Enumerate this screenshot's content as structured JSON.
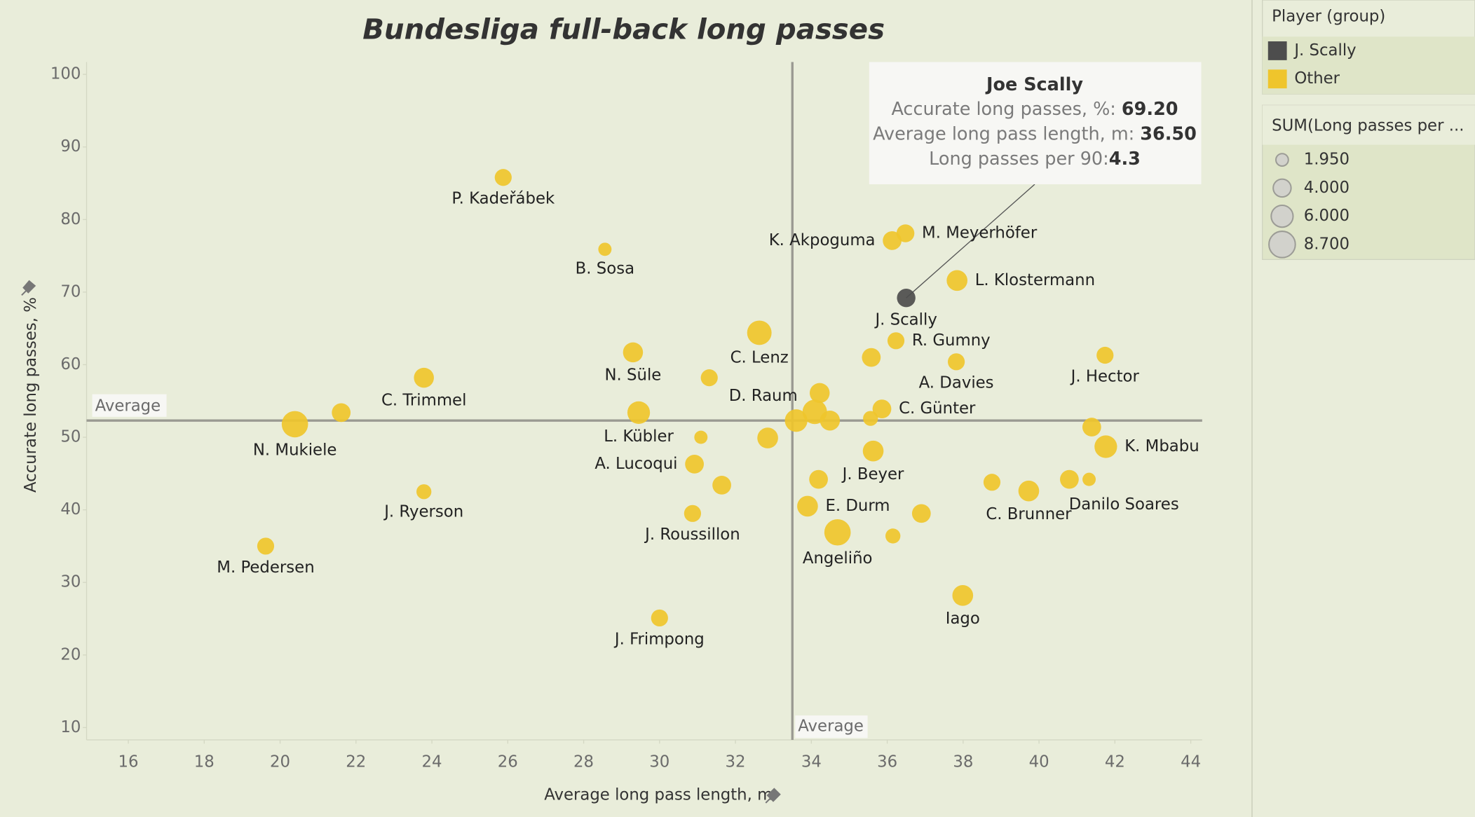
{
  "chart_data": {
    "type": "scatter",
    "title": "Bundesliga full-back long passes",
    "x_label": "Average long pass length, m",
    "y_label": "Accurate long passes, %",
    "xlim": [
      14.9,
      44.3
    ],
    "ylim": [
      8.3,
      101.7
    ],
    "xticks": [
      16,
      18,
      20,
      22,
      24,
      26,
      28,
      30,
      32,
      34,
      36,
      38,
      40,
      42,
      44
    ],
    "yticks": [
      10,
      20,
      30,
      40,
      50,
      60,
      70,
      80,
      90,
      100
    ],
    "reference_lines": [
      {
        "axis": "x",
        "value": 33.5,
        "label": "Average"
      },
      {
        "axis": "y",
        "value": 52.3,
        "label": "Average"
      }
    ],
    "legend": {
      "title": "Player (group)"
    },
    "series": [
      {
        "name": "Other",
        "color": "#efc52c",
        "x": [
          25.88,
          28.56,
          36.13,
          36.48,
          37.84,
          36.23,
          32.63,
          29.3,
          31.31,
          23.79,
          35.58,
          37.82,
          41.74,
          34.22,
          33.6,
          34.09,
          34.49,
          35.86,
          35.56,
          21.61,
          20.39,
          29.45,
          31.09,
          32.85,
          35.63,
          41.39,
          41.76,
          30.92,
          31.64,
          23.79,
          34.19,
          33.9,
          30.87,
          34.69,
          36.15,
          36.9,
          38.76,
          39.73,
          40.8,
          41.32,
          19.62,
          30.0,
          37.99
        ],
        "y": [
          85.8,
          75.9,
          77.1,
          78.1,
          71.6,
          63.3,
          64.4,
          61.7,
          58.2,
          58.2,
          61.0,
          60.4,
          61.3,
          56.1,
          52.3,
          53.5,
          52.3,
          53.9,
          52.6,
          53.4,
          51.8,
          53.4,
          50.0,
          49.9,
          48.1,
          51.4,
          48.7,
          46.3,
          43.4,
          42.5,
          44.2,
          40.5,
          39.5,
          36.9,
          36.4,
          39.5,
          43.8,
          42.6,
          44.2,
          44.2,
          35.0,
          25.1,
          28.2
        ],
        "sizes": [
          3.6,
          2.2,
          4.4,
          4.0,
          5.4,
          3.6,
          7.5,
          5.0,
          3.6,
          5.0,
          4.4,
          3.6,
          3.6,
          5.0,
          6.4,
          7.5,
          5.0,
          4.4,
          2.8,
          4.4,
          8.7,
          6.4,
          2.2,
          5.4,
          5.4,
          4.4,
          6.4,
          4.4,
          4.4,
          2.8,
          4.4,
          5.4,
          3.6,
          8.7,
          2.8,
          4.4,
          3.6,
          5.4,
          4.4,
          2.2,
          3.6,
          3.6,
          5.4
        ],
        "labels": [
          "P. Kadeřábek",
          "B. Sosa",
          "K. Akpoguma",
          "M. Meyerhöfer",
          "L. Klostermann",
          "R. Gumny",
          "C. Lenz",
          "N. Süle",
          null,
          "C. Trimmel",
          null,
          "A. Davies",
          "J. Hector",
          null,
          "D. Raum",
          null,
          null,
          "C. Günter",
          null,
          null,
          "N. Mukiele",
          "L. Kübler",
          null,
          null,
          "J. Beyer",
          null,
          "K. Mbabu",
          "A. Lucoqui",
          null,
          "J. Ryerson",
          null,
          "E. Durm",
          "J. Roussillon",
          "Angeliño",
          null,
          null,
          null,
          "C. Brunner",
          "Danilo Soares",
          null,
          "M. Pedersen",
          "J. Frimpong",
          "Iago"
        ]
      },
      {
        "name": "J. Scally",
        "color": "#4d4d4d",
        "x": [
          36.5
        ],
        "y": [
          69.2
        ],
        "sizes": [
          4.3
        ],
        "labels": [
          "J. Scally"
        ]
      }
    ],
    "size_legend": {
      "title": "SUM(Long passes per ...",
      "values": [
        {
          "value": 1.95,
          "label": "1.950"
        },
        {
          "value": 4,
          "label": "4.000"
        },
        {
          "value": 6,
          "label": "6.000"
        },
        {
          "value": 8.7,
          "label": "8.700"
        }
      ]
    },
    "tooltip": {
      "title": "Joe Scally",
      "rows": [
        {
          "label": "Accurate long passes, %:",
          "value": "69.20"
        },
        {
          "label": "Average long pass length, m:",
          "value": "36.50"
        },
        {
          "label": "Long passes per 90:",
          "value": "4.3"
        }
      ]
    }
  }
}
